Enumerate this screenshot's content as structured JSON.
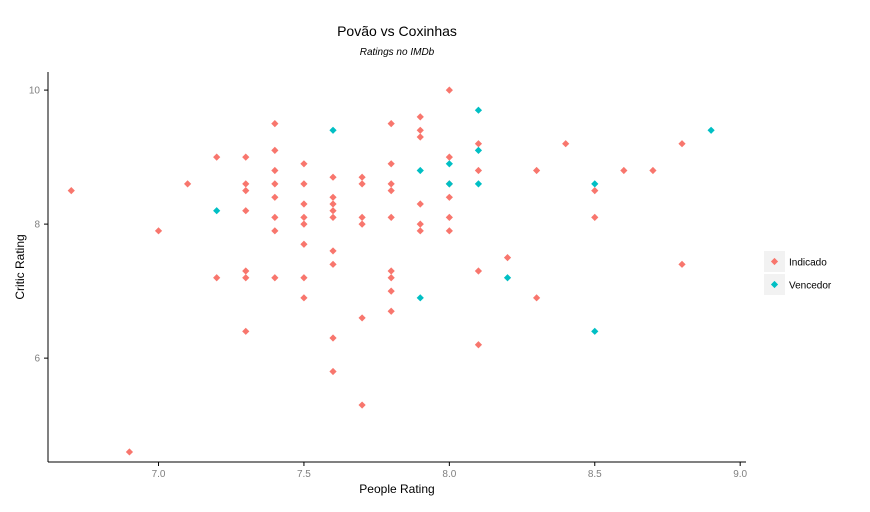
{
  "chart_data": {
    "type": "scatter",
    "title": "Povão vs Coxinhas",
    "subtitle": "Ratings no IMDb",
    "xlabel": "People Rating",
    "ylabel": "Critic Rating",
    "xlim": [
      6.62,
      9.02
    ],
    "ylim": [
      4.45,
      10.27
    ],
    "x_ticks": [
      "7.0",
      "7.5",
      "8.0",
      "8.5",
      "9.0"
    ],
    "y_ticks": [
      "6",
      "8",
      "10"
    ],
    "grid": false,
    "legend_position": "right",
    "series": [
      {
        "name": "Indicado",
        "color": "#f8766d",
        "points": [
          [
            6.7,
            8.5
          ],
          [
            6.9,
            4.6
          ],
          [
            7.0,
            7.9
          ],
          [
            7.1,
            8.6
          ],
          [
            7.2,
            9.0
          ],
          [
            7.2,
            7.2
          ],
          [
            7.3,
            9.0
          ],
          [
            7.3,
            8.6
          ],
          [
            7.3,
            8.5
          ],
          [
            7.3,
            8.2
          ],
          [
            7.3,
            7.3
          ],
          [
            7.3,
            7.2
          ],
          [
            7.3,
            6.4
          ],
          [
            7.4,
            9.5
          ],
          [
            7.4,
            9.1
          ],
          [
            7.4,
            8.8
          ],
          [
            7.4,
            8.6
          ],
          [
            7.4,
            8.4
          ],
          [
            7.4,
            8.1
          ],
          [
            7.4,
            7.9
          ],
          [
            7.4,
            7.2
          ],
          [
            7.5,
            8.9
          ],
          [
            7.5,
            8.6
          ],
          [
            7.5,
            8.3
          ],
          [
            7.5,
            8.1
          ],
          [
            7.5,
            8.0
          ],
          [
            7.5,
            7.7
          ],
          [
            7.5,
            7.2
          ],
          [
            7.5,
            6.9
          ],
          [
            7.6,
            8.7
          ],
          [
            7.6,
            8.4
          ],
          [
            7.6,
            8.3
          ],
          [
            7.6,
            8.2
          ],
          [
            7.6,
            8.1
          ],
          [
            7.6,
            7.6
          ],
          [
            7.6,
            7.4
          ],
          [
            7.6,
            6.3
          ],
          [
            7.6,
            5.8
          ],
          [
            7.7,
            8.7
          ],
          [
            7.7,
            8.6
          ],
          [
            7.7,
            8.1
          ],
          [
            7.7,
            8.0
          ],
          [
            7.7,
            6.6
          ],
          [
            7.7,
            5.3
          ],
          [
            7.8,
            9.5
          ],
          [
            7.8,
            8.9
          ],
          [
            7.8,
            8.6
          ],
          [
            7.8,
            8.5
          ],
          [
            7.8,
            8.1
          ],
          [
            7.8,
            7.3
          ],
          [
            7.8,
            7.2
          ],
          [
            7.8,
            7.0
          ],
          [
            7.8,
            6.7
          ],
          [
            7.9,
            9.6
          ],
          [
            7.9,
            9.4
          ],
          [
            7.9,
            9.3
          ],
          [
            7.9,
            8.3
          ],
          [
            7.9,
            8.0
          ],
          [
            7.9,
            7.9
          ],
          [
            8.0,
            10.0
          ],
          [
            8.0,
            9.0
          ],
          [
            8.0,
            8.6
          ],
          [
            8.0,
            8.4
          ],
          [
            8.0,
            8.1
          ],
          [
            8.0,
            7.9
          ],
          [
            8.1,
            9.2
          ],
          [
            8.1,
            8.8
          ],
          [
            8.1,
            7.3
          ],
          [
            8.1,
            6.2
          ],
          [
            8.2,
            7.5
          ],
          [
            8.3,
            8.8
          ],
          [
            8.3,
            6.9
          ],
          [
            8.4,
            9.2
          ],
          [
            8.5,
            8.5
          ],
          [
            8.5,
            8.1
          ],
          [
            8.6,
            8.8
          ],
          [
            8.7,
            8.8
          ],
          [
            8.8,
            9.2
          ],
          [
            8.8,
            7.4
          ]
        ]
      },
      {
        "name": "Vencedor",
        "color": "#00bfc4",
        "points": [
          [
            7.2,
            8.2
          ],
          [
            7.6,
            9.4
          ],
          [
            7.9,
            8.8
          ],
          [
            7.9,
            6.9
          ],
          [
            8.0,
            8.9
          ],
          [
            8.0,
            8.6
          ],
          [
            8.1,
            9.7
          ],
          [
            8.1,
            9.1
          ],
          [
            8.1,
            8.6
          ],
          [
            8.2,
            7.2
          ],
          [
            8.5,
            8.6
          ],
          [
            8.5,
            6.4
          ],
          [
            8.9,
            9.4
          ]
        ]
      }
    ]
  }
}
